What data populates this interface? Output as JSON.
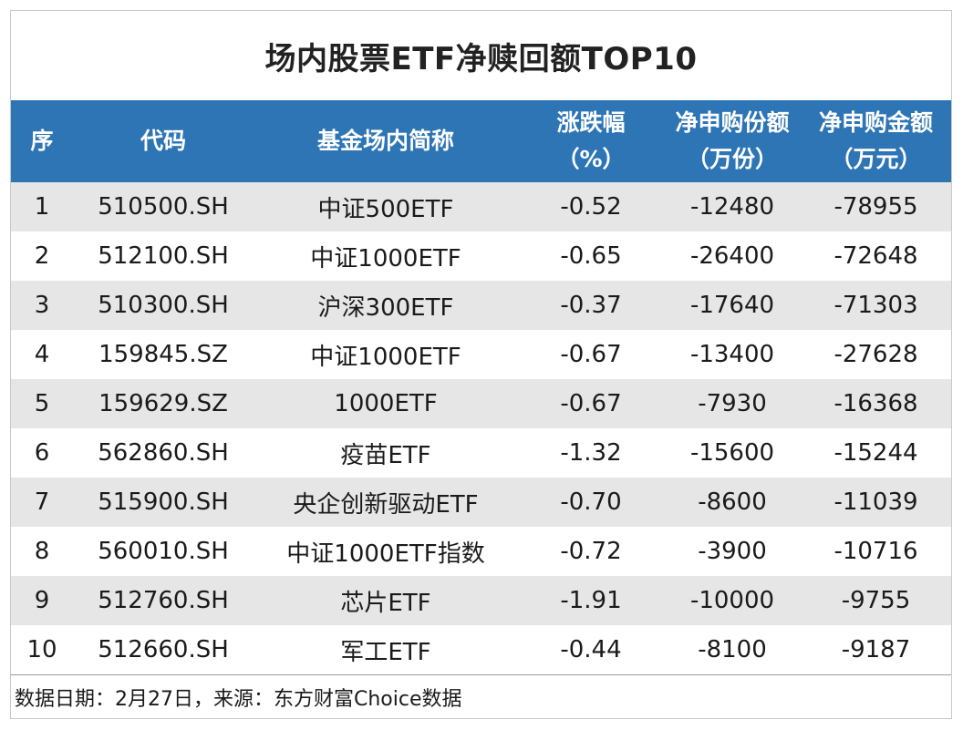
{
  "title": "场内股票ETF净赎回额TOP10",
  "header": {
    "columns": [
      {
        "line1": "序",
        "line2": ""
      },
      {
        "line1": "代码",
        "line2": ""
      },
      {
        "line1": "基金场内简称",
        "line2": ""
      },
      {
        "line1": "涨跌幅",
        "line2": "（%）"
      },
      {
        "line1": "净申购份额",
        "line2": "（万份）"
      },
      {
        "line1": "净申购金额",
        "line2": "（万元）"
      }
    ]
  },
  "rows": [
    {
      "rank": "1",
      "code": "510500.SH",
      "name": "中证500ETF",
      "change": "-0.52",
      "shares": "-12480",
      "amount": "-78955"
    },
    {
      "rank": "2",
      "code": "512100.SH",
      "name": "中证1000ETF",
      "change": "-0.65",
      "shares": "-26400",
      "amount": "-72648"
    },
    {
      "rank": "3",
      "code": "510300.SH",
      "name": "沪深300ETF",
      "change": "-0.37",
      "shares": "-17640",
      "amount": "-71303"
    },
    {
      "rank": "4",
      "code": "159845.SZ",
      "name": "中证1000ETF",
      "change": "-0.67",
      "shares": "-13400",
      "amount": "-27628"
    },
    {
      "rank": "5",
      "code": "159629.SZ",
      "name": "1000ETF",
      "change": "-0.67",
      "shares": "-7930",
      "amount": "-16368"
    },
    {
      "rank": "6",
      "code": "562860.SH",
      "name": "疫苗ETF",
      "change": "-1.32",
      "shares": "-15600",
      "amount": "-15244"
    },
    {
      "rank": "7",
      "code": "515900.SH",
      "name": "央企创新驱动ETF",
      "change": "-0.70",
      "shares": "-8600",
      "amount": "-11039"
    },
    {
      "rank": "8",
      "code": "560010.SH",
      "name": "中证1000ETF指数",
      "change": "-0.72",
      "shares": "-3900",
      "amount": "-10716"
    },
    {
      "rank": "9",
      "code": "512760.SH",
      "name": "芯片ETF",
      "change": "-1.91",
      "shares": "-10000",
      "amount": "-9755"
    },
    {
      "rank": "10",
      "code": "512660.SH",
      "name": "军工ETF",
      "change": "-0.44",
      "shares": "-8100",
      "amount": "-9187"
    }
  ],
  "footer": "数据日期：2月27日，来源：东方财富Choice数据",
  "colors": {
    "header_bg": "#2e75b6",
    "shade_row": "#e6e6e6"
  }
}
